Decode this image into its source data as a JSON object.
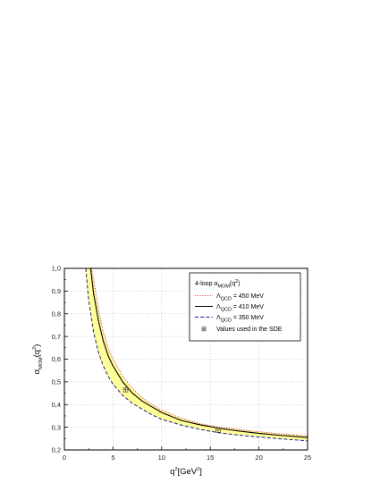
{
  "chart_data": {
    "type": "line",
    "xlabel": {
      "base": "q",
      "sup": "2",
      "tail": "[GeV",
      "sup2": "2",
      "end": "]"
    },
    "ylabel": {
      "base": "α",
      "sub": "MOM",
      "tail": "(q",
      "sup": "2",
      "end": ")"
    },
    "xlim": [
      0,
      25
    ],
    "ylim": [
      0.2,
      1.0
    ],
    "xticks": [
      "0",
      "5",
      "10",
      "15",
      "20",
      "25"
    ],
    "yticks": [
      "0,2",
      "0,3",
      "0,4",
      "0,5",
      "0,6",
      "0,7",
      "0,8",
      "0,9",
      "1,0"
    ],
    "grid": true,
    "legend_position": "top-right",
    "legend_title": {
      "base": "4-loop α",
      "sub": "MOM",
      "tail": "(q",
      "sup": "2",
      "end": ")"
    },
    "band_color": "#ffff99",
    "series": [
      {
        "name": "Λ",
        "name_sub": "QCD",
        "name_tail": " = 450 MeV",
        "style": "dotted",
        "color": "#e0201c",
        "x": [
          2.8,
          3,
          3.5,
          4,
          4.5,
          5,
          6,
          7,
          8,
          9,
          10,
          12,
          14,
          16,
          18,
          20,
          22,
          25
        ],
        "y": [
          1.0,
          0.95,
          0.82,
          0.72,
          0.65,
          0.6,
          0.525,
          0.47,
          0.43,
          0.4,
          0.375,
          0.34,
          0.315,
          0.3,
          0.29,
          0.28,
          0.272,
          0.262
        ]
      },
      {
        "name": "Λ",
        "name_sub": "QCD",
        "name_tail": " = 410 MeV",
        "style": "solid",
        "color": "#000000",
        "x": [
          2.7,
          3,
          3.5,
          4,
          4.5,
          5,
          6,
          7,
          8,
          9,
          10,
          12,
          14,
          16,
          18,
          20,
          22,
          25
        ],
        "y": [
          1.0,
          0.89,
          0.77,
          0.68,
          0.615,
          0.57,
          0.5,
          0.45,
          0.415,
          0.39,
          0.365,
          0.33,
          0.31,
          0.295,
          0.283,
          0.273,
          0.265,
          0.255
        ]
      },
      {
        "name": "Λ",
        "name_sub": "QCD",
        "name_tail": " = 350 MeV",
        "style": "dashed",
        "color": "#1f1fa0",
        "x": [
          2.2,
          2.5,
          3,
          3.5,
          4,
          4.5,
          5,
          6,
          7,
          8,
          9,
          10,
          12,
          14,
          16,
          18,
          20,
          22,
          25
        ],
        "y": [
          1.0,
          0.86,
          0.72,
          0.63,
          0.57,
          0.525,
          0.49,
          0.44,
          0.405,
          0.38,
          0.355,
          0.335,
          0.31,
          0.29,
          0.275,
          0.265,
          0.257,
          0.25,
          0.24
        ]
      }
    ],
    "markers": {
      "label": "Values used in the SDE",
      "symbol": "⊞",
      "points": [
        {
          "x": 6.3,
          "y": 0.465
        },
        {
          "x": 15.8,
          "y": 0.287
        }
      ]
    }
  }
}
